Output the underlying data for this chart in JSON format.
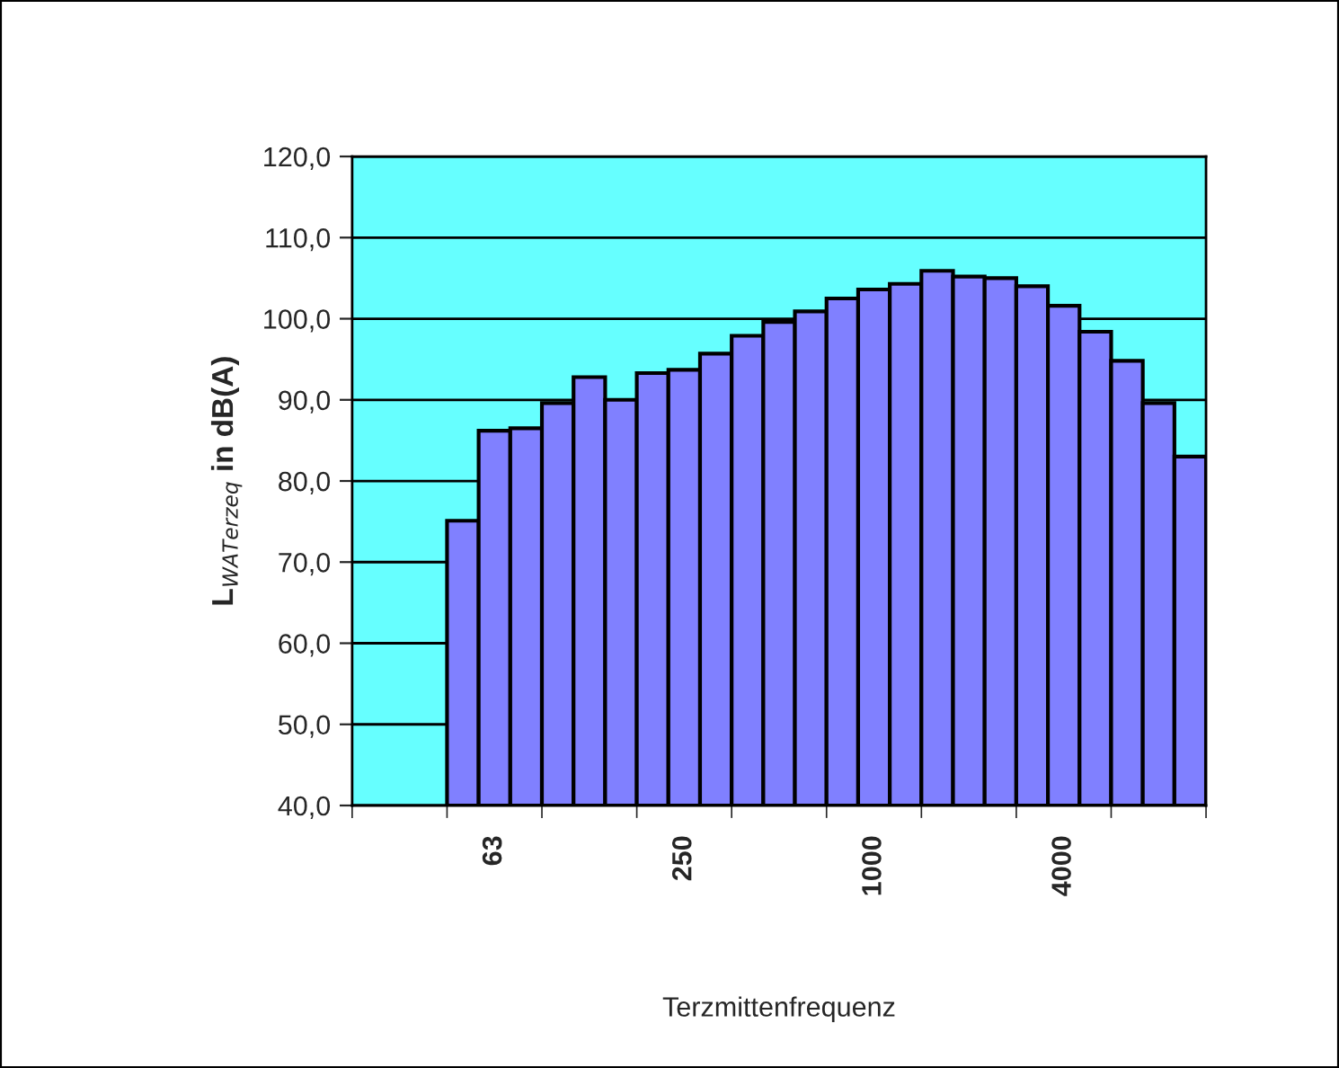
{
  "chart_data": {
    "type": "bar",
    "xlabel": "Terzmittenfrequenz",
    "ylabel": "L$_{WATerzeq}$ in dB(A)",
    "categories": [
      null,
      null,
      null,
      null,
      "63",
      null,
      null,
      null,
      null,
      null,
      "250",
      null,
      null,
      null,
      null,
      null,
      "1000",
      null,
      null,
      null,
      null,
      null,
      "4000",
      null,
      null,
      null,
      null
    ],
    "values": [
      null,
      null,
      null,
      75.1,
      86.2,
      86.5,
      89.6,
      92.8,
      90.0,
      93.3,
      93.7,
      95.7,
      97.9,
      99.6,
      100.9,
      102.5,
      103.6,
      104.3,
      105.9,
      105.2,
      105.0,
      104.0,
      101.6,
      98.4,
      94.8,
      89.6,
      83.0
    ],
    "color": "#8080ff",
    "ylim": [
      40,
      120
    ],
    "yticks": [
      {
        "value": 40,
        "label": "40,0"
      },
      {
        "value": 50,
        "label": "50,0"
      },
      {
        "value": 60,
        "label": "60,0"
      },
      {
        "value": 70,
        "label": "70,0"
      },
      {
        "value": 80,
        "label": "80,0"
      },
      {
        "value": 90,
        "label": "90,0"
      },
      {
        "value": 100,
        "label": "100,0"
      },
      {
        "value": 110,
        "label": "110,0"
      },
      {
        "value": 120,
        "label": "120,0"
      }
    ],
    "grid": "y"
  }
}
